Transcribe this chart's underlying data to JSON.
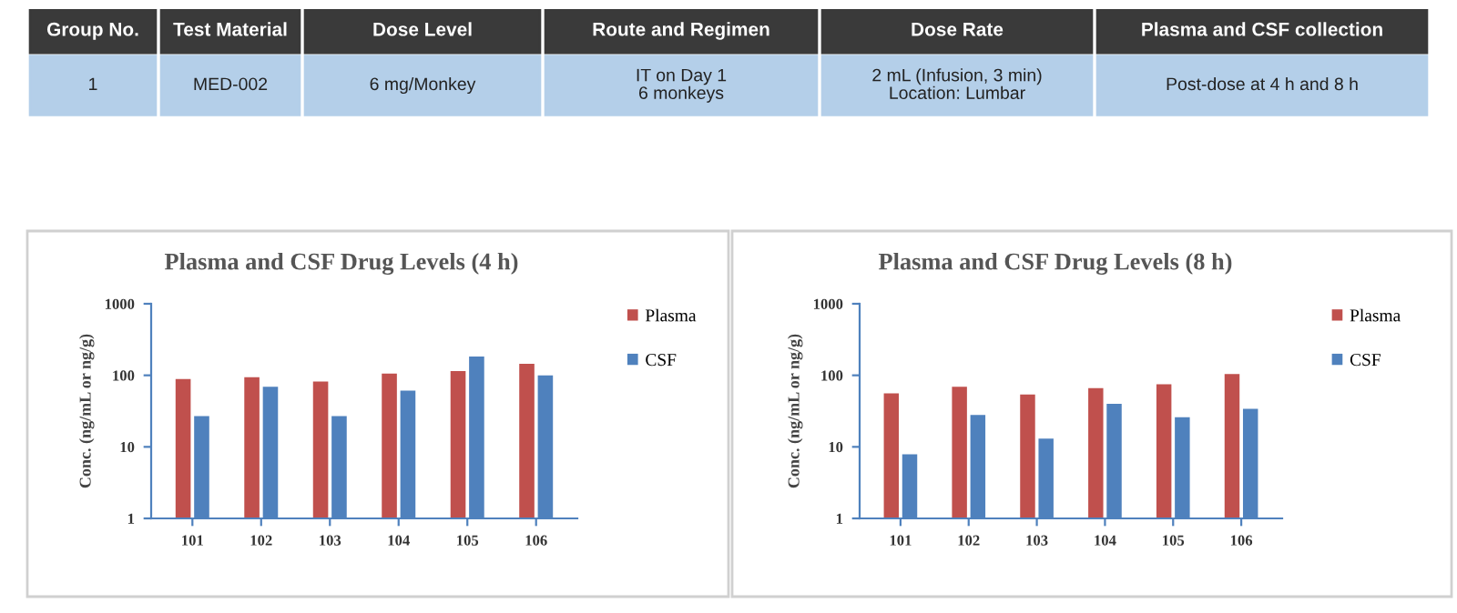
{
  "chart_data": [
    {
      "type": "other",
      "categories": [
        "Group No.",
        "Test Material",
        "Dose Level",
        "Route and Regimen",
        "Dose Rate",
        "Plasma and CSF collection"
      ],
      "annotations": [
        "1",
        "MED-002",
        "6 mg/Monkey",
        "IT on Day 1\n6 monkeys",
        "2 mL (Infusion, 3 min)\nLocation: Lumbar",
        "Post-dose at 4 h and 8 h"
      ]
    },
    {
      "type": "bar",
      "title": "Plasma and CSF Drug Levels (4 h)",
      "ylabel": "Conc. (ng/mL or ng/g)",
      "categories": [
        "101",
        "102",
        "103",
        "104",
        "105",
        "106"
      ],
      "series": [
        {
          "name": "Plasma",
          "color": "#c0504d",
          "values": [
            89,
            94,
            82,
            106,
            115,
            145
          ]
        },
        {
          "name": "CSF",
          "color": "#4f81bd",
          "values": [
            27,
            69,
            27,
            61,
            183,
            100
          ]
        }
      ],
      "log": true,
      "ylim": [
        1,
        1000
      ],
      "yticks": [
        1,
        10,
        100,
        1000
      ],
      "grid": false,
      "legend": "right"
    },
    {
      "type": "bar",
      "title": "Plasma and CSF Drug Levels (8 h)",
      "ylabel": "Conc. (ng/mL or ng/g)",
      "categories": [
        "101",
        "102",
        "103",
        "104",
        "105",
        "106"
      ],
      "series": [
        {
          "name": "Plasma",
          "color": "#c0504d",
          "values": [
            56,
            69,
            54,
            66,
            75,
            104
          ]
        },
        {
          "name": "CSF",
          "color": "#4f81bd",
          "values": [
            7.9,
            28,
            13,
            40,
            26,
            34
          ]
        }
      ],
      "log": true,
      "ylim": [
        1,
        1000
      ],
      "yticks": [
        1,
        10,
        100,
        1000
      ],
      "grid": false,
      "legend": "right"
    }
  ]
}
